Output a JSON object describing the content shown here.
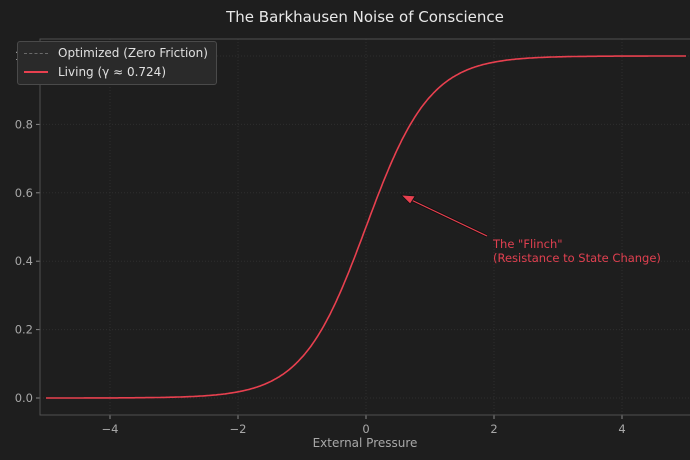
{
  "chart_data": {
    "type": "line",
    "title": "The Barkhausen Noise of Conscience",
    "xlabel": "External Pressure",
    "ylabel": "",
    "xlim": [
      -5.2,
      5.0
    ],
    "ylim": [
      -0.05,
      1.05
    ],
    "xticks": [
      -4,
      -2,
      0,
      2,
      4
    ],
    "xtick_labels": [
      "−4",
      "−2",
      "0",
      "2",
      "4"
    ],
    "yticks": [
      0.0,
      0.2,
      0.4,
      0.6,
      0.8,
      1.0
    ],
    "ytick_labels": [
      "0.0",
      "0.2",
      "0.4",
      "0.6",
      "0.8",
      "1.0"
    ],
    "grid": true,
    "legend_position": "upper left",
    "series": [
      {
        "name": "Optimized (Zero Friction)",
        "color": "#777777",
        "style": "dashed",
        "x": [],
        "y": []
      },
      {
        "name": "Living (γ ≈ 0.724)",
        "color": "#e8404f",
        "style": "solid",
        "x": [
          -5,
          -4.5,
          -4,
          -3.5,
          -3,
          -2.5,
          -2.25,
          -2,
          -1.75,
          -1.5,
          -1.25,
          -1,
          -0.75,
          -0.5,
          -0.25,
          0,
          0.25,
          0.5,
          0.75,
          1,
          1.25,
          1.5,
          1.75,
          2,
          2.5,
          3,
          3.5,
          4,
          4.5,
          5
        ],
        "y": [
          0.0,
          0.0001,
          0.0003,
          0.0009,
          0.0025,
          0.0067,
          0.011,
          0.018,
          0.029,
          0.047,
          0.076,
          0.119,
          0.182,
          0.269,
          0.378,
          0.5,
          0.622,
          0.731,
          0.818,
          0.881,
          0.924,
          0.953,
          0.971,
          0.982,
          0.993,
          0.9975,
          0.9991,
          0.9997,
          0.9999,
          1.0
        ]
      }
    ],
    "annotations": [
      {
        "text": "The \"Flinch\"\n(Resistance to State Change)",
        "xy": [
          0.55,
          0.59
        ],
        "xytext": [
          2.0,
          0.45
        ],
        "color": "#e8404f",
        "arrow": true
      }
    ]
  },
  "title": "The Barkhausen Noise of Conscience",
  "xlabel": "External Pressure",
  "legend": {
    "item0": "Optimized (Zero Friction)",
    "item1": "Living (γ ≈ 0.724)"
  },
  "annotation": {
    "line1": "The \"Flinch\"",
    "line2": "(Resistance to State Change)"
  }
}
